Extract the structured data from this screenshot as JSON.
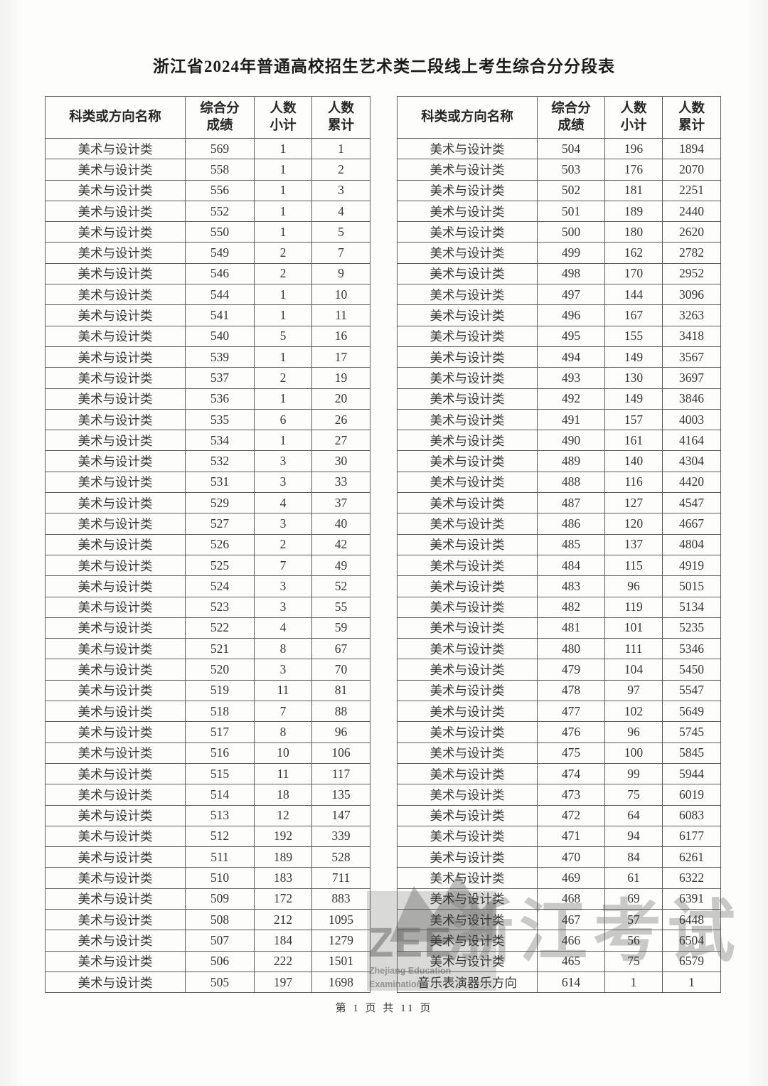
{
  "page": {
    "title": "浙江省2024年普通高校招生艺术类二段线上考生综合分分段表",
    "footer": "第 1 页 共 11 页",
    "page_number": "1",
    "total_pages": "11"
  },
  "headers": {
    "category": "科类或方向名称",
    "score_line1": "综合分",
    "score_line2": "成绩",
    "count_line1": "人数",
    "count_line2": "小计",
    "cumulative_line1": "人数",
    "cumulative_line2": "累计"
  },
  "left_table": {
    "rows": [
      [
        "美术与设计类",
        "569",
        "1",
        "1"
      ],
      [
        "美术与设计类",
        "558",
        "1",
        "2"
      ],
      [
        "美术与设计类",
        "556",
        "1",
        "3"
      ],
      [
        "美术与设计类",
        "552",
        "1",
        "4"
      ],
      [
        "美术与设计类",
        "550",
        "1",
        "5"
      ],
      [
        "美术与设计类",
        "549",
        "2",
        "7"
      ],
      [
        "美术与设计类",
        "546",
        "2",
        "9"
      ],
      [
        "美术与设计类",
        "544",
        "1",
        "10"
      ],
      [
        "美术与设计类",
        "541",
        "1",
        "11"
      ],
      [
        "美术与设计类",
        "540",
        "5",
        "16"
      ],
      [
        "美术与设计类",
        "539",
        "1",
        "17"
      ],
      [
        "美术与设计类",
        "537",
        "2",
        "19"
      ],
      [
        "美术与设计类",
        "536",
        "1",
        "20"
      ],
      [
        "美术与设计类",
        "535",
        "6",
        "26"
      ],
      [
        "美术与设计类",
        "534",
        "1",
        "27"
      ],
      [
        "美术与设计类",
        "532",
        "3",
        "30"
      ],
      [
        "美术与设计类",
        "531",
        "3",
        "33"
      ],
      [
        "美术与设计类",
        "529",
        "4",
        "37"
      ],
      [
        "美术与设计类",
        "527",
        "3",
        "40"
      ],
      [
        "美术与设计类",
        "526",
        "2",
        "42"
      ],
      [
        "美术与设计类",
        "525",
        "7",
        "49"
      ],
      [
        "美术与设计类",
        "524",
        "3",
        "52"
      ],
      [
        "美术与设计类",
        "523",
        "3",
        "55"
      ],
      [
        "美术与设计类",
        "522",
        "4",
        "59"
      ],
      [
        "美术与设计类",
        "521",
        "8",
        "67"
      ],
      [
        "美术与设计类",
        "520",
        "3",
        "70"
      ],
      [
        "美术与设计类",
        "519",
        "11",
        "81"
      ],
      [
        "美术与设计类",
        "518",
        "7",
        "88"
      ],
      [
        "美术与设计类",
        "517",
        "8",
        "96"
      ],
      [
        "美术与设计类",
        "516",
        "10",
        "106"
      ],
      [
        "美术与设计类",
        "515",
        "11",
        "117"
      ],
      [
        "美术与设计类",
        "514",
        "18",
        "135"
      ],
      [
        "美术与设计类",
        "513",
        "12",
        "147"
      ],
      [
        "美术与设计类",
        "512",
        "192",
        "339"
      ],
      [
        "美术与设计类",
        "511",
        "189",
        "528"
      ],
      [
        "美术与设计类",
        "510",
        "183",
        "711"
      ],
      [
        "美术与设计类",
        "509",
        "172",
        "883"
      ],
      [
        "美术与设计类",
        "508",
        "212",
        "1095"
      ],
      [
        "美术与设计类",
        "507",
        "184",
        "1279"
      ],
      [
        "美术与设计类",
        "506",
        "222",
        "1501"
      ],
      [
        "美术与设计类",
        "505",
        "197",
        "1698"
      ]
    ]
  },
  "right_table": {
    "rows": [
      [
        "美术与设计类",
        "504",
        "196",
        "1894"
      ],
      [
        "美术与设计类",
        "503",
        "176",
        "2070"
      ],
      [
        "美术与设计类",
        "502",
        "181",
        "2251"
      ],
      [
        "美术与设计类",
        "501",
        "189",
        "2440"
      ],
      [
        "美术与设计类",
        "500",
        "180",
        "2620"
      ],
      [
        "美术与设计类",
        "499",
        "162",
        "2782"
      ],
      [
        "美术与设计类",
        "498",
        "170",
        "2952"
      ],
      [
        "美术与设计类",
        "497",
        "144",
        "3096"
      ],
      [
        "美术与设计类",
        "496",
        "167",
        "3263"
      ],
      [
        "美术与设计类",
        "495",
        "155",
        "3418"
      ],
      [
        "美术与设计类",
        "494",
        "149",
        "3567"
      ],
      [
        "美术与设计类",
        "493",
        "130",
        "3697"
      ],
      [
        "美术与设计类",
        "492",
        "149",
        "3846"
      ],
      [
        "美术与设计类",
        "491",
        "157",
        "4003"
      ],
      [
        "美术与设计类",
        "490",
        "161",
        "4164"
      ],
      [
        "美术与设计类",
        "489",
        "140",
        "4304"
      ],
      [
        "美术与设计类",
        "488",
        "116",
        "4420"
      ],
      [
        "美术与设计类",
        "487",
        "127",
        "4547"
      ],
      [
        "美术与设计类",
        "486",
        "120",
        "4667"
      ],
      [
        "美术与设计类",
        "485",
        "137",
        "4804"
      ],
      [
        "美术与设计类",
        "484",
        "115",
        "4919"
      ],
      [
        "美术与设计类",
        "483",
        "96",
        "5015"
      ],
      [
        "美术与设计类",
        "482",
        "119",
        "5134"
      ],
      [
        "美术与设计类",
        "481",
        "101",
        "5235"
      ],
      [
        "美术与设计类",
        "480",
        "111",
        "5346"
      ],
      [
        "美术与设计类",
        "479",
        "104",
        "5450"
      ],
      [
        "美术与设计类",
        "478",
        "97",
        "5547"
      ],
      [
        "美术与设计类",
        "477",
        "102",
        "5649"
      ],
      [
        "美术与设计类",
        "476",
        "96",
        "5745"
      ],
      [
        "美术与设计类",
        "475",
        "100",
        "5845"
      ],
      [
        "美术与设计类",
        "474",
        "99",
        "5944"
      ],
      [
        "美术与设计类",
        "473",
        "75",
        "6019"
      ],
      [
        "美术与设计类",
        "472",
        "64",
        "6083"
      ],
      [
        "美术与设计类",
        "471",
        "94",
        "6177"
      ],
      [
        "美术与设计类",
        "470",
        "84",
        "6261"
      ],
      [
        "美术与设计类",
        "469",
        "61",
        "6322"
      ],
      [
        "美术与设计类",
        "468",
        "69",
        "6391"
      ],
      [
        "美术与设计类",
        "467",
        "57",
        "6448"
      ],
      [
        "美术与设计类",
        "466",
        "56",
        "6504"
      ],
      [
        "美术与设计类",
        "465",
        "75",
        "6579"
      ],
      [
        "音乐表演器乐方向",
        "614",
        "1",
        "1"
      ]
    ]
  },
  "watermark": {
    "brand": "ZEE",
    "org_line1": "Zhejiang Education",
    "org_line2": "Examinations",
    "stamp": "浙江考试"
  }
}
